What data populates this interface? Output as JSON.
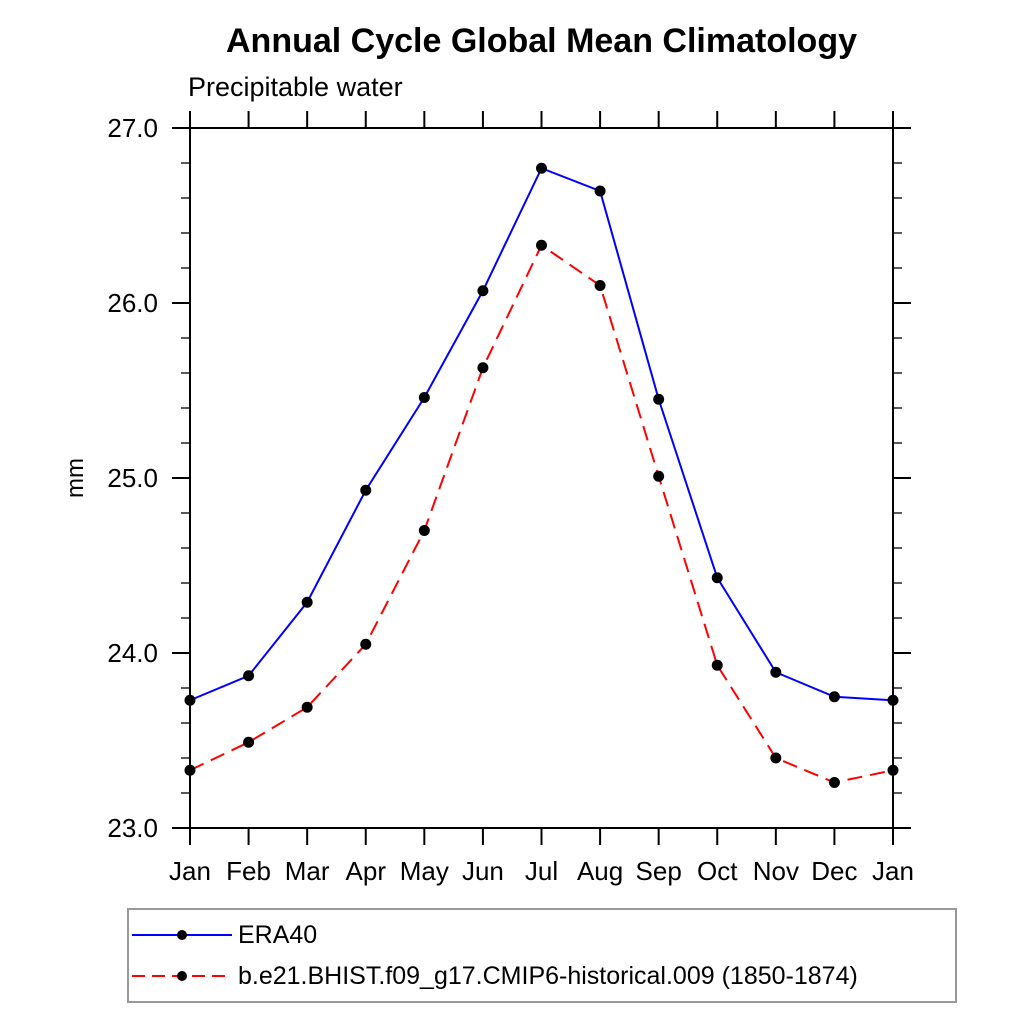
{
  "header": {
    "title": "Annual Cycle Global Mean Climatology",
    "subtitle": "Precipitable water"
  },
  "axes": {
    "y_label": "mm",
    "y_tick_labels": [
      "23.0",
      "24.0",
      "25.0",
      "26.0",
      "27.0"
    ],
    "x_tick_labels": [
      "Jan",
      "Feb",
      "Mar",
      "Apr",
      "May",
      "Jun",
      "Jul",
      "Aug",
      "Sep",
      "Oct",
      "Nov",
      "Dec",
      "Jan"
    ]
  },
  "legend": {
    "entries": [
      {
        "label": "ERA40",
        "color": "#0000ff",
        "line_style": "solid",
        "marker": "filled-circle",
        "marker_color": "#000000"
      },
      {
        "label": "b.e21.BHIST.f09_g17.CMIP6-historical.009 (1850-1874)",
        "color": "#ff0000",
        "line_style": "dashed",
        "marker": "filled-circle",
        "marker_color": "#000000"
      }
    ]
  },
  "chart_data": {
    "type": "line",
    "title": "Annual Cycle Global Mean Climatology",
    "subtitle": "Precipitable water",
    "xlabel": "",
    "ylabel": "mm",
    "categories": [
      "Jan",
      "Feb",
      "Mar",
      "Apr",
      "May",
      "Jun",
      "Jul",
      "Aug",
      "Sep",
      "Oct",
      "Nov",
      "Dec",
      "Jan"
    ],
    "series": [
      {
        "name": "ERA40",
        "color": "#0000ff",
        "line_style": "solid",
        "marker": "filled-circle",
        "marker_color": "#000000",
        "values": [
          23.73,
          23.87,
          24.29,
          24.93,
          25.46,
          26.07,
          26.77,
          26.64,
          25.45,
          24.43,
          23.89,
          23.75,
          23.73
        ]
      },
      {
        "name": "b.e21.BHIST.f09_g17.CMIP6-historical.009 (1850-1874)",
        "color": "#ff0000",
        "line_style": "dashed",
        "marker": "filled-circle",
        "marker_color": "#000000",
        "values": [
          23.33,
          23.49,
          23.69,
          24.05,
          24.7,
          25.63,
          26.33,
          26.1,
          25.01,
          23.93,
          23.4,
          23.26,
          23.33
        ]
      }
    ],
    "ylim": [
      23.0,
      27.0
    ],
    "ytick_major": [
      23.0,
      24.0,
      25.0,
      26.0,
      27.0
    ],
    "ytick_labels": [
      "23.0",
      "24.0",
      "25.0",
      "26.0",
      "27.0"
    ],
    "ytick_minor_step": 0.2,
    "grid": false,
    "legend_position": "bottom-left-boxed"
  }
}
